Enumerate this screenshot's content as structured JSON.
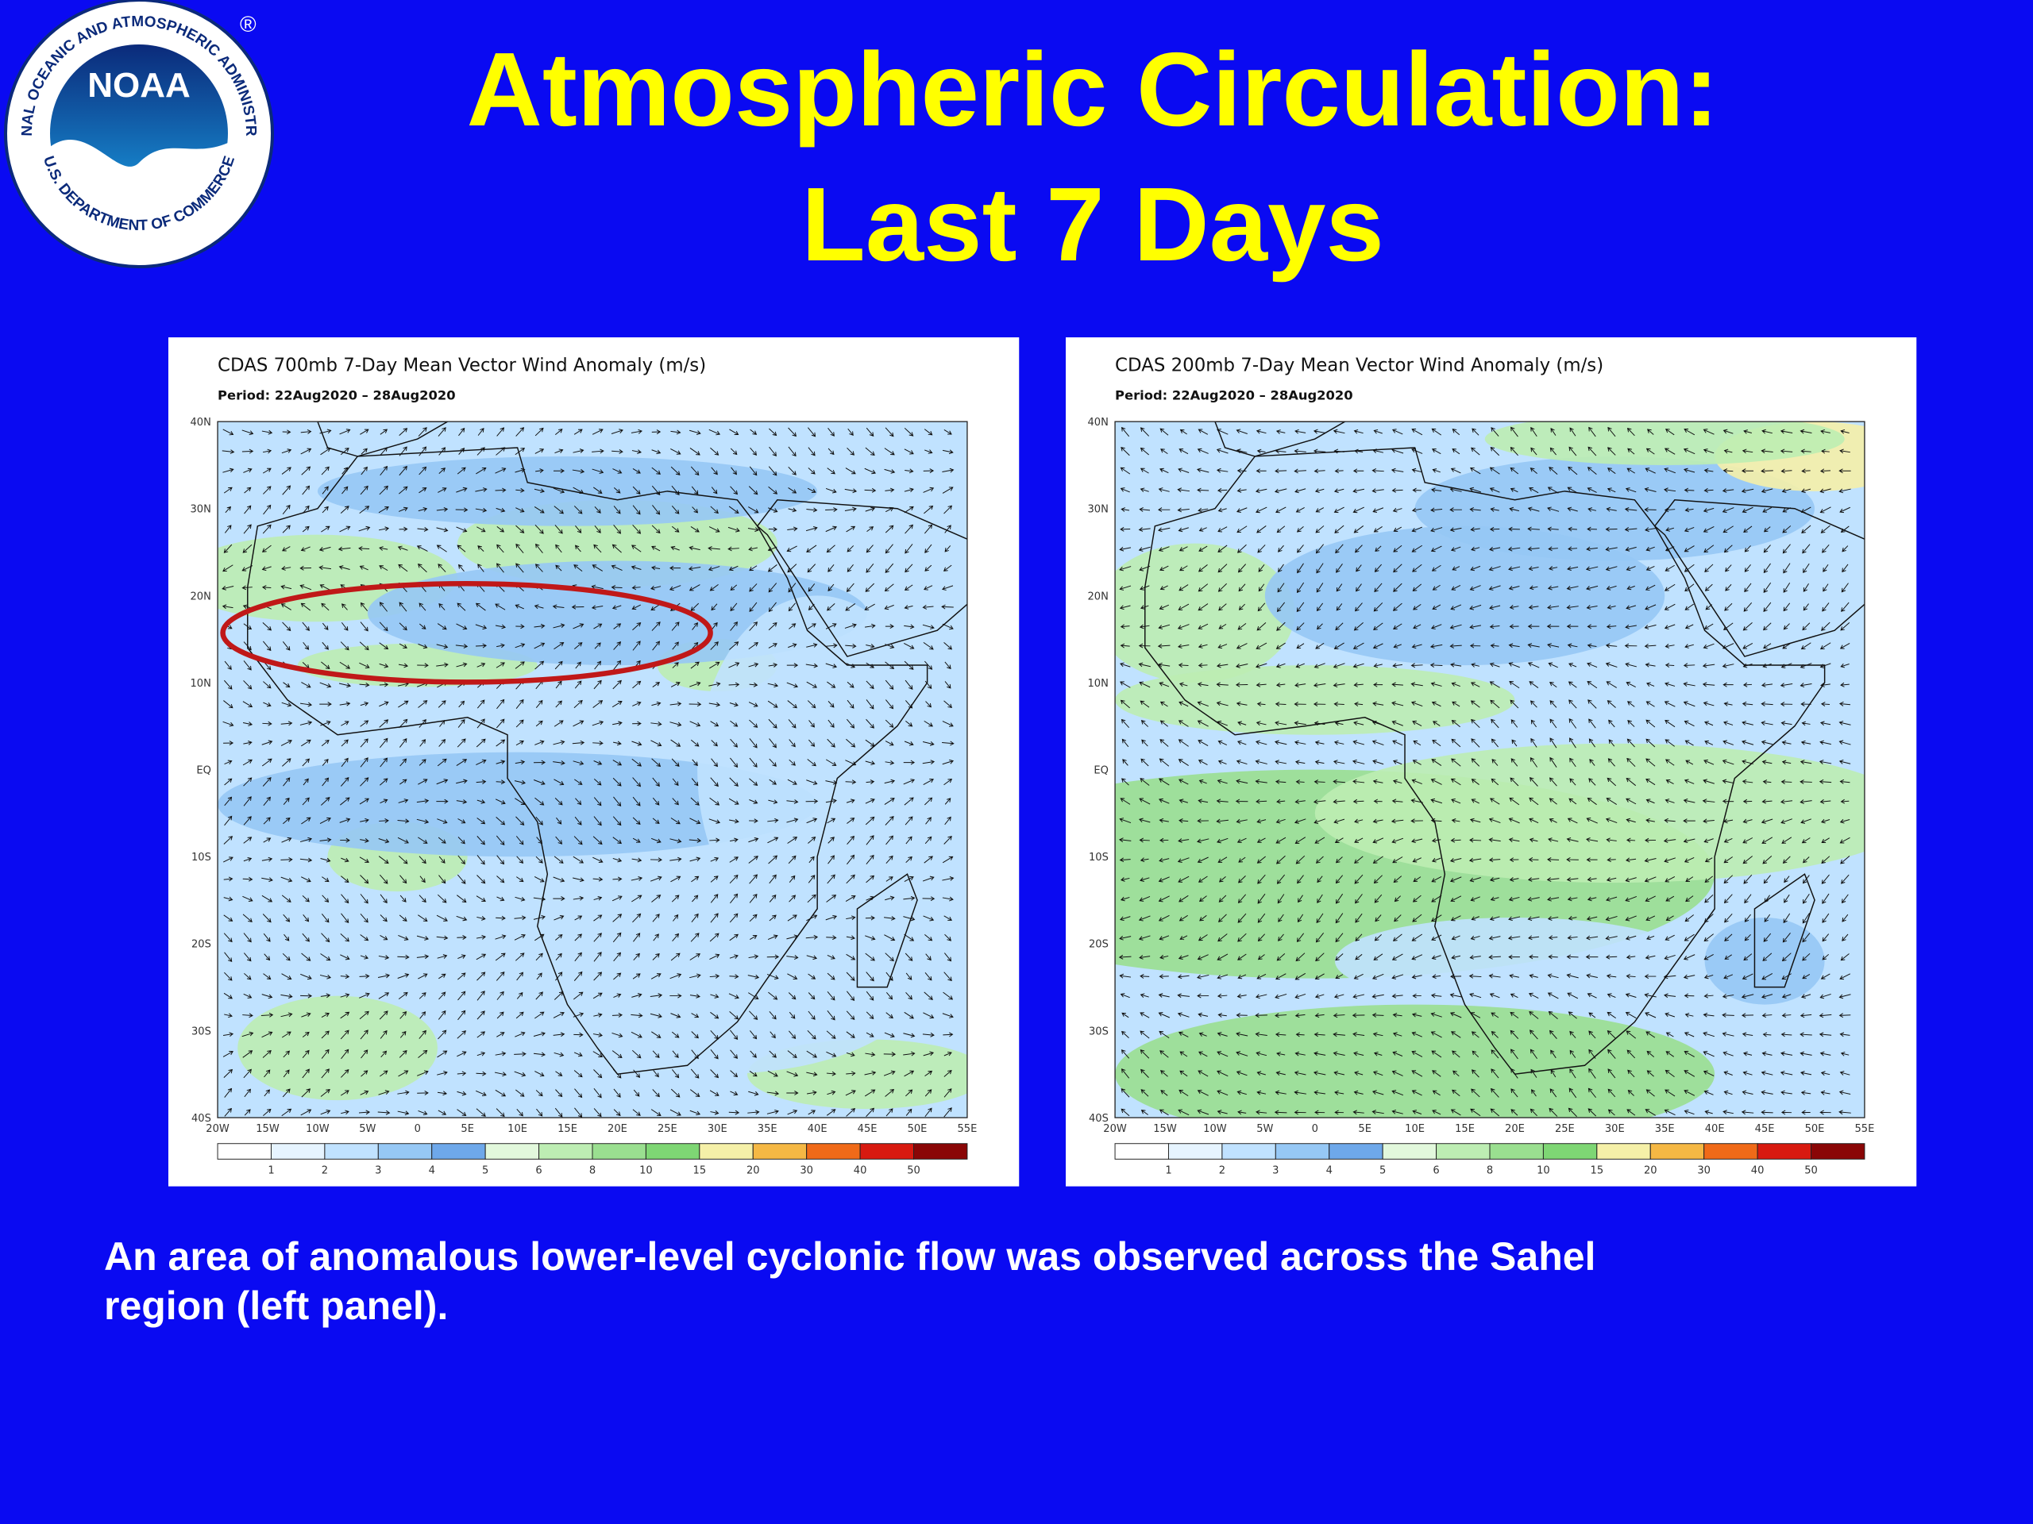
{
  "logo": {
    "ring_top": "NATIONAL OCEANIC AND ATMOSPHERIC ADMINISTRATION",
    "ring_bottom": "U.S. DEPARTMENT OF COMMERCE",
    "center": "NOAA",
    "registered": "®"
  },
  "header": {
    "title_lines": [
      "Atmospheric Circulation:",
      "Last 7 Days"
    ]
  },
  "panels": [
    {
      "title": "CDAS 700mb 7-Day Mean Vector Wind Anomaly (m/s)",
      "period": "Period: 22Aug2020 – 28Aug2020",
      "lat_labels": [
        "40N",
        "30N",
        "20N",
        "10N",
        "EQ",
        "10S",
        "20S",
        "30S",
        "40S"
      ],
      "lon_labels": [
        "20W",
        "15W",
        "10W",
        "5W",
        "0",
        "5E",
        "10E",
        "15E",
        "20E",
        "25E",
        "30E",
        "35E",
        "40E",
        "45E",
        "50E",
        "55E"
      ],
      "colorbar_labels": [
        "1",
        "2",
        "3",
        "4",
        "5",
        "6",
        "8",
        "10",
        "15",
        "20",
        "30",
        "40",
        "50"
      ]
    },
    {
      "title": "CDAS 200mb 7-Day Mean Vector Wind Anomaly (m/s)",
      "period": "Period: 22Aug2020 – 28Aug2020",
      "lat_labels": [
        "40N",
        "30N",
        "20N",
        "10N",
        "EQ",
        "10S",
        "20S",
        "30S",
        "40S"
      ],
      "lon_labels": [
        "20W",
        "15W",
        "10W",
        "5W",
        "0",
        "5E",
        "10E",
        "15E",
        "20E",
        "25E",
        "30E",
        "35E",
        "40E",
        "45E",
        "50E",
        "55E"
      ],
      "colorbar_labels": [
        "1",
        "2",
        "3",
        "4",
        "5",
        "6",
        "8",
        "10",
        "15",
        "20",
        "30",
        "40",
        "50"
      ]
    }
  ],
  "caption": "An area of anomalous lower-level cyclonic flow was observed across the Sahel region (left panel)."
}
